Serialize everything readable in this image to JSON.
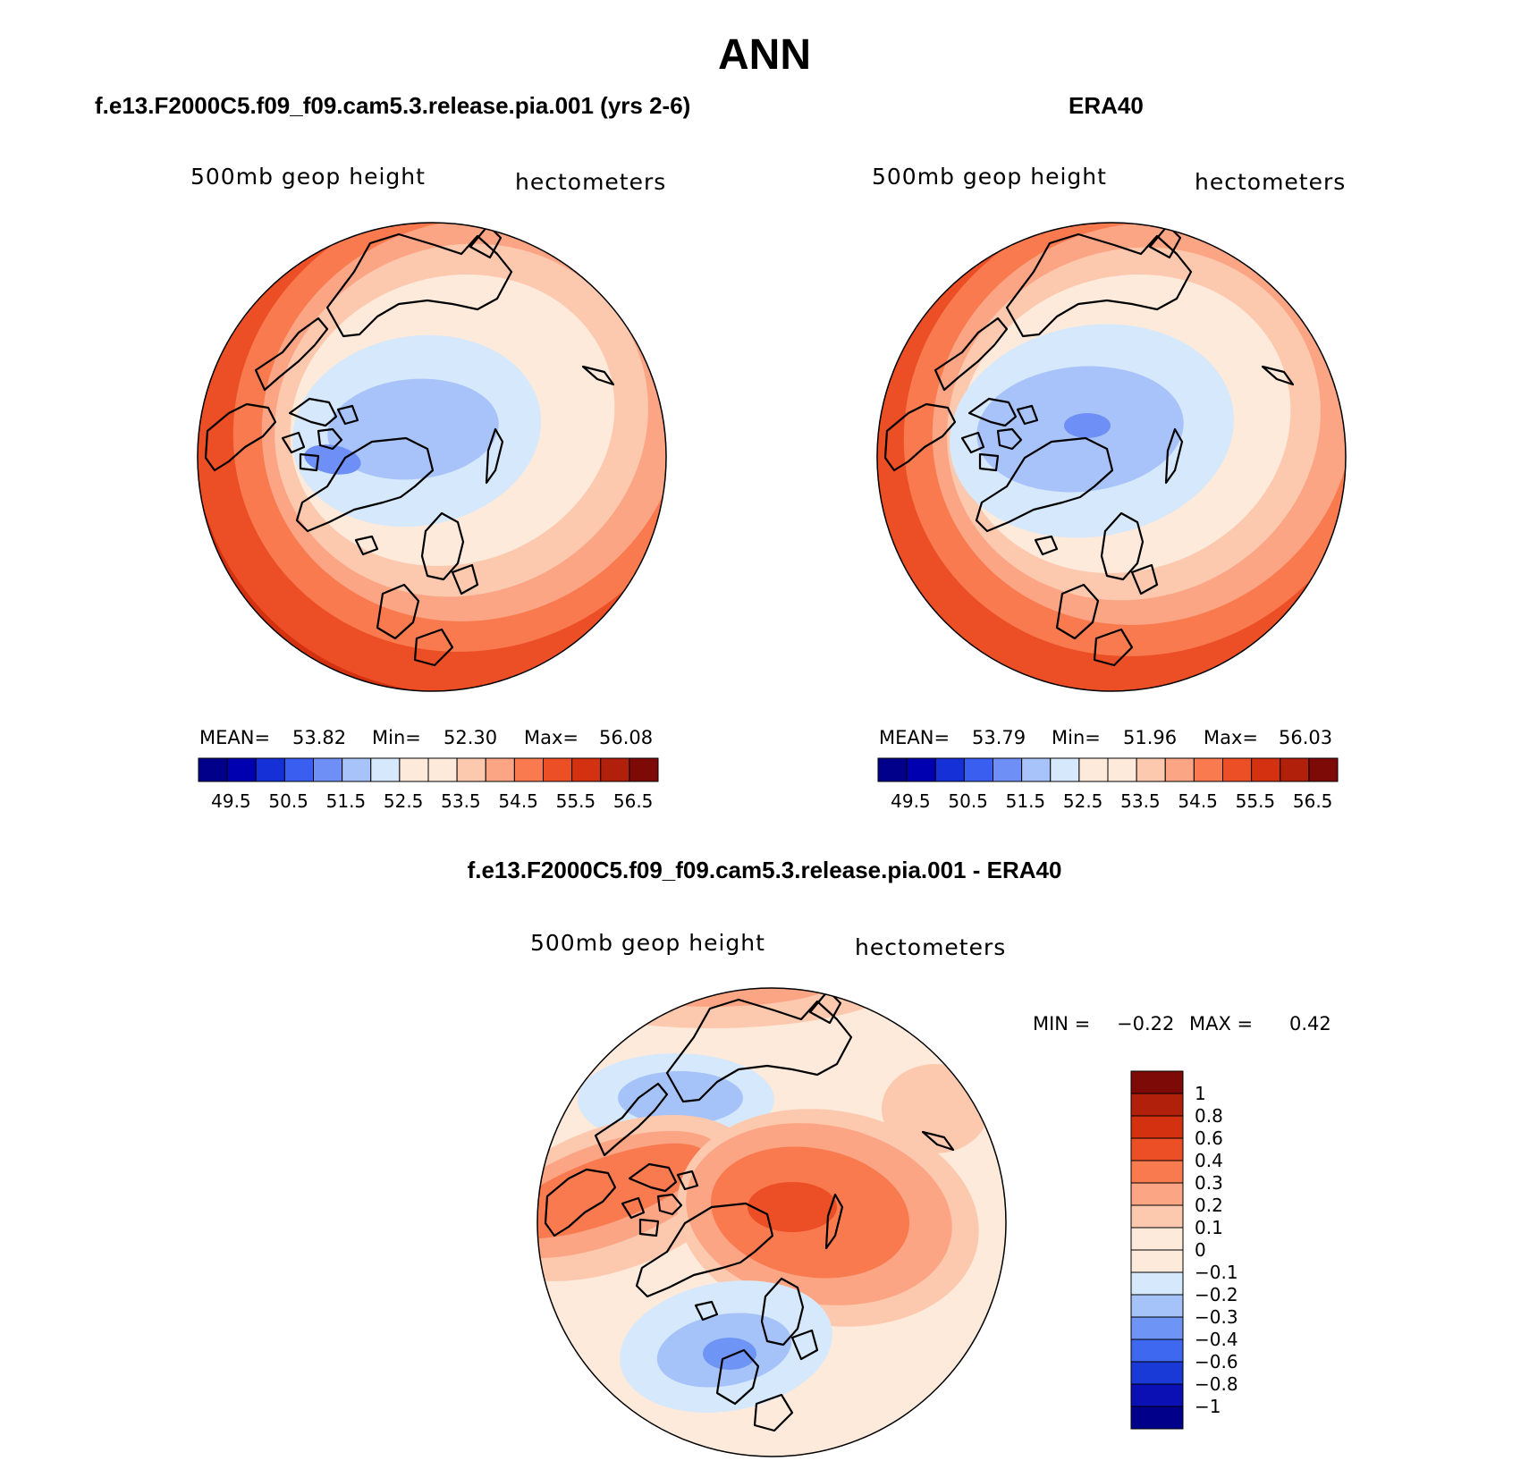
{
  "title": "ANN",
  "colors": {
    "mean_levels": [
      "#00008b",
      "#0000b0",
      "#1530d6",
      "#3a5ff0",
      "#6e8ff5",
      "#a8c2fa",
      "#d6e8fb",
      "#fdeadb",
      "#fcc9af",
      "#fba585",
      "#f97a4f",
      "#ec4f25",
      "#d43110",
      "#b0200a",
      "#7e0a07"
    ],
    "diff_levels": [
      "#00008b",
      "#0a10b4",
      "#1a3ad8",
      "#3d68ef",
      "#6e94f5",
      "#a6c3f9",
      "#d6e8fb",
      "#fdeadb",
      "#fcc9af",
      "#fba585",
      "#f97a4f",
      "#ec4f25",
      "#d43110",
      "#b0200a",
      "#7e0a07"
    ]
  },
  "panels": [
    {
      "title": "f.e13.F2000C5.f09_f09.cam5.3.release.pia.001 (yrs 2-6)",
      "variable": "500mb geop height",
      "units": "hectometers",
      "stats": {
        "mean_label": "MEAN=",
        "mean": "53.82",
        "min_label": "Min=",
        "min": "52.30",
        "max_label": "Max=",
        "max": "56.08"
      },
      "colorbar_ticks": [
        "49.5",
        "50.5",
        "51.5",
        "52.5",
        "53.5",
        "54.5",
        "55.5",
        "56.5"
      ]
    },
    {
      "title": "ERA40",
      "variable": "500mb geop height",
      "units": "hectometers",
      "stats": {
        "mean_label": "MEAN=",
        "mean": "53.79",
        "min_label": "Min=",
        "min": "51.96",
        "max_label": "Max=",
        "max": "56.03"
      },
      "colorbar_ticks": [
        "49.5",
        "50.5",
        "51.5",
        "52.5",
        "53.5",
        "54.5",
        "55.5",
        "56.5"
      ]
    },
    {
      "title": "f.e13.F2000C5.f09_f09.cam5.3.release.pia.001 - ERA40",
      "variable": "500mb geop height",
      "units": "hectometers",
      "stats": {
        "min_label": "MIN =",
        "min": "−0.22",
        "max_label": "MAX =",
        "max": "0.42"
      },
      "colorbar_labels": [
        "1",
        "0.8",
        "0.6",
        "0.4",
        "0.3",
        "0.2",
        "0.1",
        "0",
        "−0.1",
        "−0.2",
        "−0.3",
        "−0.4",
        "−0.6",
        "−0.8",
        "−1"
      ]
    }
  ]
}
